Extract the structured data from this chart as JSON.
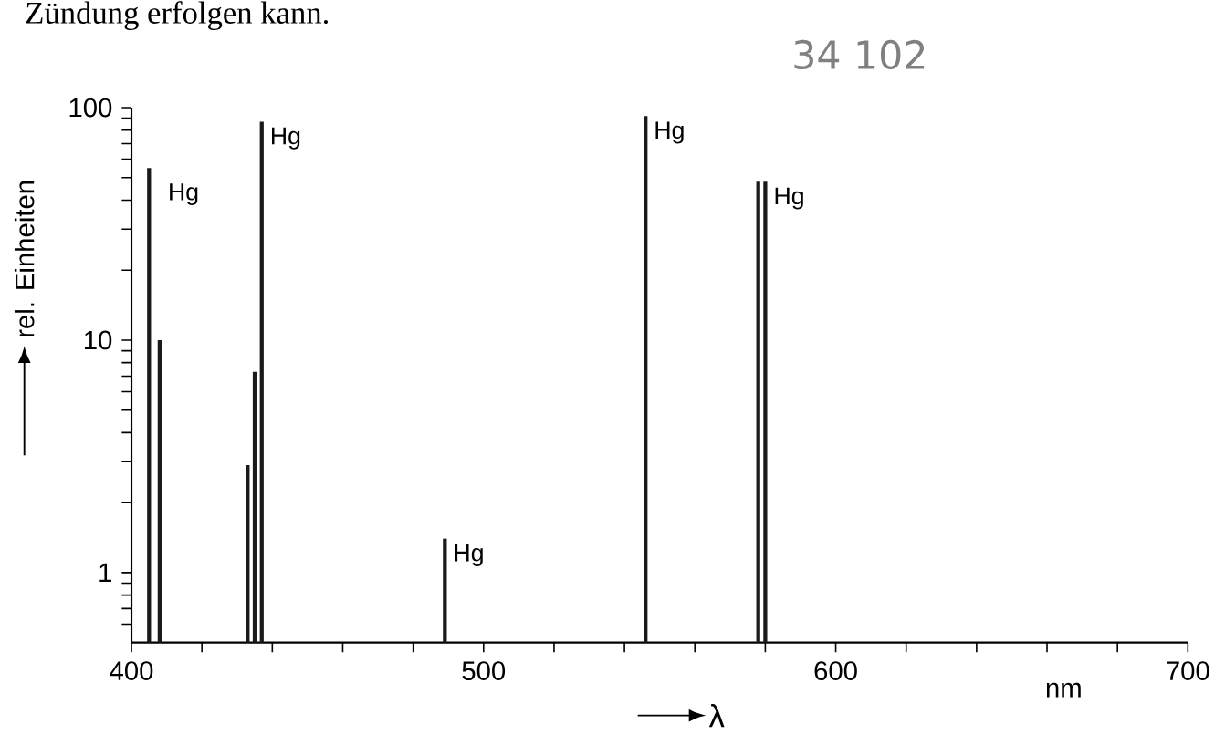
{
  "chart_data": {
    "type": "bar",
    "x": [
      405,
      408,
      433,
      435,
      437,
      489,
      546,
      578,
      580
    ],
    "values": [
      55,
      10,
      2.9,
      7.3,
      87,
      1.4,
      92,
      48,
      48
    ],
    "color": "#1a1a1a",
    "log": "y",
    "xlim": [
      400,
      700
    ],
    "ylim": [
      0.5,
      100
    ],
    "xticks": [
      400,
      {
        "value": 420,
        "label": null
      },
      {
        "value": 440,
        "label": null
      },
      {
        "value": 460,
        "label": null
      },
      {
        "value": 480,
        "label": null
      },
      500,
      {
        "value": 520,
        "label": null
      },
      {
        "value": 540,
        "label": null
      },
      {
        "value": 560,
        "label": null
      },
      {
        "value": 580,
        "label": null
      },
      600,
      {
        "value": 620,
        "label": null
      },
      {
        "value": 640,
        "label": null
      },
      {
        "value": 660,
        "label": null
      },
      {
        "value": 680,
        "label": null
      },
      700
    ],
    "yticks": [
      {
        "value": 0.6,
        "label": null
      },
      {
        "value": 0.7,
        "label": null
      },
      {
        "value": 0.8,
        "label": null
      },
      {
        "value": 0.9,
        "label": null
      },
      1,
      {
        "value": 2,
        "label": null
      },
      {
        "value": 3,
        "label": null
      },
      {
        "value": 4,
        "label": null
      },
      {
        "value": 5,
        "label": null
      },
      {
        "value": 6,
        "label": null
      },
      {
        "value": 7,
        "label": null
      },
      {
        "value": 8,
        "label": null
      },
      {
        "value": 9,
        "label": null
      },
      10,
      {
        "value": 20,
        "label": null
      },
      {
        "value": 30,
        "label": null
      },
      {
        "value": 40,
        "label": null
      },
      {
        "value": 50,
        "label": null
      },
      {
        "value": 60,
        "label": null
      },
      {
        "value": 70,
        "label": null
      },
      {
        "value": 80,
        "label": null
      },
      {
        "value": 90,
        "label": null
      },
      100
    ],
    "xlabel": "λ",
    "ylabel": "rel. Einheiten",
    "grid": false,
    "annotations": [
      {
        "text": "Hg",
        "x": 408,
        "y": 50
      },
      {
        "text": "Hg",
        "x": 437,
        "y": 87
      },
      {
        "text": "Hg",
        "x": 489,
        "y": 1.4
      },
      {
        "text": "Hg",
        "x": 546,
        "y": 92
      },
      {
        "text": "Hg",
        "x": 580,
        "y": 48
      },
      "nm",
      "Zündung erfolgen kann.",
      "34 102"
    ]
  }
}
